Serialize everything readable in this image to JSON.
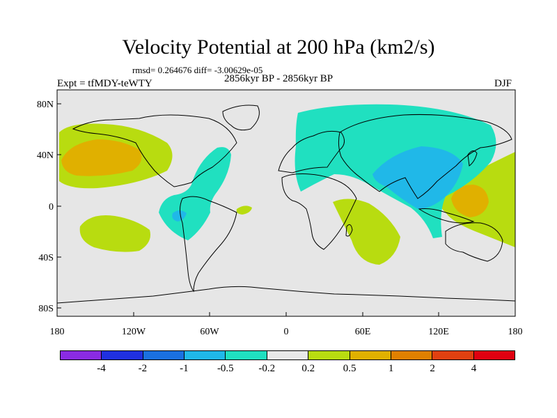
{
  "title": "Velocity Potential at 200 hPa (km2/s)",
  "stats": "rmsd= 0.264676 diff= -3.00629e-05",
  "experiment": "Expt = tfMDY-teWTY",
  "period": "2856kyr BP - 2856kyr BP",
  "season": "DJF",
  "axes": {
    "x_ticks": [
      "180",
      "120W",
      "60W",
      "0",
      "60E",
      "120E",
      "180"
    ],
    "y_ticks": [
      "80N",
      "40N",
      "0",
      "40S",
      "80S"
    ]
  },
  "colorbar": {
    "colors": [
      "#8a2be2",
      "#2030e0",
      "#1a70e0",
      "#20b8e8",
      "#20e0c0",
      "#e8e8e8",
      "#b8dc10",
      "#e0b000",
      "#e08000",
      "#e04010",
      "#e00010"
    ],
    "labels": [
      "-4",
      "-2",
      "-1",
      "-0.5",
      "-0.2",
      "0.2",
      "0.5",
      "1",
      "2",
      "4"
    ]
  },
  "colors": {
    "background": "#e6e6e6",
    "pos_weak": "#b8dc10",
    "pos_mid": "#e0b000",
    "neg_weak": "#20e0c0",
    "neg_mid": "#20b8e8"
  }
}
